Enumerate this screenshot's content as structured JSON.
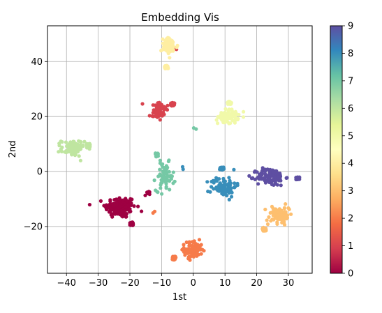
{
  "chart_data": {
    "type": "scatter",
    "title": "Embedding Vis",
    "xlabel": "1st",
    "ylabel": "2nd",
    "xlim": [
      -46,
      37.5
    ],
    "ylim": [
      -37,
      53
    ],
    "xticks": [
      -40,
      -30,
      -20,
      -10,
      0,
      10,
      20,
      30
    ],
    "yticks": [
      -20,
      0,
      20,
      40
    ],
    "xtick_labels": [
      "−40",
      "−30",
      "−20",
      "−10",
      "0",
      "10",
      "20",
      "30"
    ],
    "ytick_labels": [
      "−20",
      "0",
      "20",
      "40"
    ],
    "grid": true,
    "colorbar": {
      "colormap": "Spectral",
      "range": [
        0,
        9
      ],
      "ticks": [
        0,
        1,
        2,
        3,
        4,
        5,
        6,
        7,
        8,
        9
      ],
      "tick_labels": [
        "0",
        "1",
        "2",
        "3",
        "4",
        "5",
        "6",
        "7",
        "8",
        "9"
      ],
      "colors": [
        "#9e0142",
        "#d53e4f",
        "#f46d43",
        "#fdae61",
        "#fee08b",
        "#ffffbf",
        "#e6f598",
        "#abdda4",
        "#66c2a5",
        "#3288bd",
        "#5e4fa2"
      ]
    },
    "clusters": [
      {
        "label": 0,
        "shape": "blob",
        "cx": -23,
        "cy": -13,
        "sx": 2.4,
        "sy": 2.0,
        "n": 150
      },
      {
        "label": 0,
        "shape": "square",
        "cx": -19.5,
        "cy": -19,
        "sx": 0.6,
        "sy": 0.6,
        "n": 25
      },
      {
        "label": 0,
        "shape": "blob",
        "cx": -14.5,
        "cy": -8,
        "sx": 0.5,
        "sy": 0.5,
        "n": 6
      },
      {
        "label": 1,
        "shape": "blob",
        "cx": -11,
        "cy": 22.5,
        "sx": 1.2,
        "sy": 1.5,
        "n": 65
      },
      {
        "label": 1,
        "shape": "square",
        "cx": -6.5,
        "cy": 24.5,
        "sx": 0.6,
        "sy": 0.6,
        "n": 25
      },
      {
        "label": 1,
        "shape": "blob",
        "cx": -5.5,
        "cy": 45,
        "sx": 0.3,
        "sy": 0.3,
        "n": 2
      },
      {
        "label": 2,
        "shape": "blob",
        "cx": 0,
        "cy": -28.5,
        "sx": 1.4,
        "sy": 1.6,
        "n": 90
      },
      {
        "label": 2,
        "shape": "square",
        "cx": -6,
        "cy": -31.5,
        "sx": 0.6,
        "sy": 0.6,
        "n": 25
      },
      {
        "label": 2,
        "shape": "blob",
        "cx": -12.5,
        "cy": -15,
        "sx": 0.3,
        "sy": 0.3,
        "n": 2
      },
      {
        "label": 3,
        "shape": "blob",
        "cx": 27,
        "cy": -16,
        "sx": 1.5,
        "sy": 1.5,
        "n": 95
      },
      {
        "label": 3,
        "shape": "square",
        "cx": 22.5,
        "cy": -21,
        "sx": 0.7,
        "sy": 0.7,
        "n": 25
      },
      {
        "label": 4,
        "shape": "blob",
        "cx": -7.5,
        "cy": 45.5,
        "sx": 1.3,
        "sy": 1.5,
        "n": 65
      },
      {
        "label": 4,
        "shape": "square",
        "cx": -8.5,
        "cy": 38,
        "sx": 0.6,
        "sy": 0.6,
        "n": 20
      },
      {
        "label": 5,
        "shape": "blob",
        "cx": 11,
        "cy": 20,
        "sx": 1.6,
        "sy": 1.3,
        "n": 85
      },
      {
        "label": 5,
        "shape": "square",
        "cx": 11.5,
        "cy": 25,
        "sx": 0.7,
        "sy": 0.5,
        "n": 20
      },
      {
        "label": 6,
        "shape": "blob",
        "cx": -38,
        "cy": 8.5,
        "sx": 1.8,
        "sy": 1.5,
        "n": 90
      },
      {
        "label": 6,
        "shape": "square",
        "cx": -33,
        "cy": 9.5,
        "sx": 0.6,
        "sy": 0.7,
        "n": 20
      },
      {
        "label": 7,
        "shape": "blob",
        "cx": -9,
        "cy": -2,
        "sx": 1.4,
        "sy": 2.5,
        "n": 70
      },
      {
        "label": 7,
        "shape": "square",
        "cx": -11.5,
        "cy": 6,
        "sx": 0.5,
        "sy": 0.7,
        "n": 20
      },
      {
        "label": 7,
        "shape": "blob",
        "cx": 1,
        "cy": 16,
        "sx": 0.4,
        "sy": 0.4,
        "n": 2
      },
      {
        "label": 8,
        "shape": "blob",
        "cx": 9.5,
        "cy": -5.5,
        "sx": 2.0,
        "sy": 1.8,
        "n": 90
      },
      {
        "label": 8,
        "shape": "square",
        "cx": 9,
        "cy": 1,
        "sx": 0.7,
        "sy": 0.6,
        "n": 20
      },
      {
        "label": 8,
        "shape": "blob",
        "cx": -3,
        "cy": 1.5,
        "sx": 0.3,
        "sy": 0.3,
        "n": 2
      },
      {
        "label": 9,
        "shape": "blob",
        "cx": 24.5,
        "cy": -2,
        "sx": 2.2,
        "sy": 1.6,
        "n": 120
      },
      {
        "label": 9,
        "shape": "square",
        "cx": 33,
        "cy": -2.5,
        "sx": 0.6,
        "sy": 0.5,
        "n": 25
      }
    ]
  }
}
